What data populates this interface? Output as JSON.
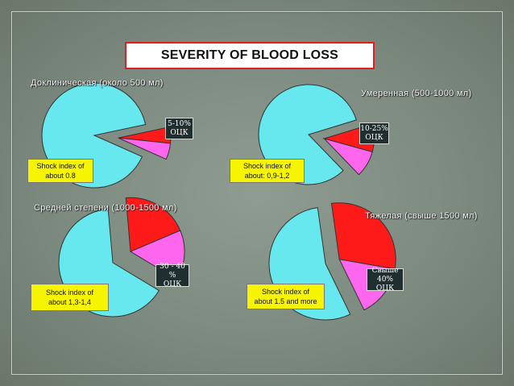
{
  "slide": {
    "title": "SEVERITY OF BLOOD LOSS"
  },
  "colors": {
    "main": "#66e8ee",
    "red": "#ff1a1a",
    "pink": "#ff66ee",
    "outline": "#333333"
  },
  "chart_data": [
    {
      "type": "pie",
      "title": "Доклиническая (около 500 мл)",
      "slices": [
        {
          "name": "remaining",
          "value": 90,
          "color": "#66e8ee"
        },
        {
          "name": "red",
          "value": 5,
          "color": "#ff1a1a"
        },
        {
          "name": "pink",
          "value": 5,
          "color": "#ff66ee"
        }
      ],
      "label": [
        "5-10%",
        "ОЦК"
      ],
      "shock_index": [
        "Shock index of",
        "about 0.8"
      ]
    },
    {
      "type": "pie",
      "title": "Умеренная (500-1000 мл)",
      "slices": [
        {
          "name": "remaining",
          "value": 82.5,
          "color": "#66e8ee"
        },
        {
          "name": "red",
          "value": 9,
          "color": "#ff1a1a"
        },
        {
          "name": "pink",
          "value": 8.5,
          "color": "#ff66ee"
        }
      ],
      "label": [
        "10-25%",
        "ОЦК"
      ],
      "shock_index": [
        "Shock index of",
        "about: 0,9-1,2"
      ]
    },
    {
      "type": "pie",
      "title": "Средней степени (1000-1500 мл)",
      "slices": [
        {
          "name": "remaining",
          "value": 65,
          "color": "#66e8ee"
        },
        {
          "name": "red",
          "value": 20,
          "color": "#ff1a1a"
        },
        {
          "name": "pink",
          "value": 15,
          "color": "#ff66ee"
        }
      ],
      "label": [
        "30 - 40 %",
        "ОЦК"
      ],
      "shock_index": [
        "Shock index of",
        "about 1,3-1,4"
      ]
    },
    {
      "type": "pie",
      "title": "Тяжелая (свыше 1500 мл)",
      "slices": [
        {
          "name": "remaining",
          "value": 55,
          "color": "#66e8ee"
        },
        {
          "name": "red",
          "value": 30,
          "color": "#ff1a1a"
        },
        {
          "name": "pink",
          "value": 15,
          "color": "#ff66ee"
        }
      ],
      "label": [
        "Свыше",
        "40% ОЦК"
      ],
      "shock_index": [
        "Shock index of",
        "about 1.5 and more"
      ]
    }
  ]
}
